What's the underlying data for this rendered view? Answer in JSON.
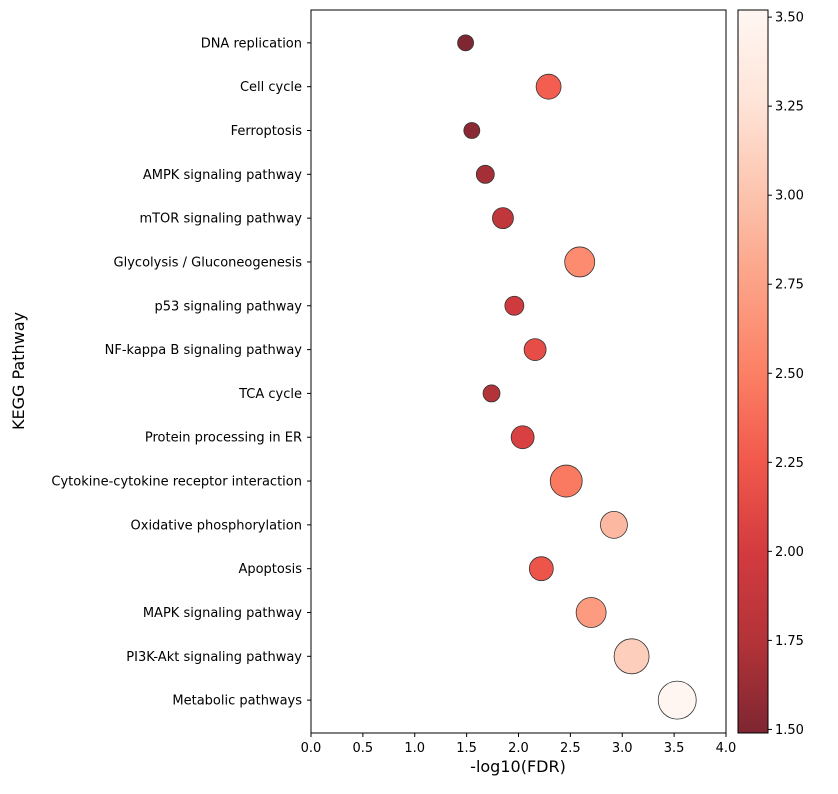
{
  "chart_data": {
    "type": "scatter",
    "title": "",
    "xlabel": "-log10(FDR)",
    "ylabel": "KEGG Pathway",
    "xlim": [
      0.0,
      4.0
    ],
    "xticks": [
      "0.0",
      "0.5",
      "1.0",
      "1.5",
      "2.0",
      "2.5",
      "3.0",
      "3.5",
      "4.0"
    ],
    "grid": false,
    "categories": [
      "DNA replication",
      "Cell cycle",
      "Ferroptosis",
      "AMPK signaling pathway",
      "mTOR signaling pathway",
      "Glycolysis / Gluconeogenesis",
      "p53 signaling pathway",
      "NF-kappa B signaling pathway",
      "TCA cycle",
      "Protein processing in ER",
      "Cytokine-cytokine receptor interaction",
      "Oxidative phosphorylation",
      "Apoptosis",
      "MAPK signaling pathway",
      "PI3K-Akt signaling pathway",
      "Metabolic pathways"
    ],
    "x": [
      1.49,
      2.29,
      1.55,
      1.68,
      1.85,
      2.59,
      1.96,
      2.16,
      1.74,
      2.04,
      2.46,
      2.92,
      2.22,
      2.7,
      3.09,
      3.53
    ],
    "color_values": [
      1.49,
      2.29,
      1.55,
      1.68,
      1.85,
      2.59,
      1.96,
      2.16,
      1.74,
      2.04,
      2.46,
      2.92,
      2.22,
      2.7,
      3.09,
      3.53
    ],
    "size": [
      64,
      156,
      64,
      81,
      110,
      225,
      90,
      121,
      72,
      132,
      256,
      182,
      144,
      225,
      306,
      361
    ],
    "colormap": "Reds_r",
    "colormap_stops": [
      "#67000d",
      "#a50f15",
      "#cb181d",
      "#ef3b2c",
      "#fb6a4a",
      "#fc9272",
      "#fcbba1",
      "#fee0d2",
      "#fff5f0"
    ],
    "marker_edge_color": "#333333",
    "colorbar": {
      "range": [
        1.49,
        3.52
      ],
      "ticks": [
        "1.50",
        "1.75",
        "2.00",
        "2.25",
        "2.50",
        "2.75",
        "3.00",
        "3.25",
        "3.50"
      ]
    }
  }
}
